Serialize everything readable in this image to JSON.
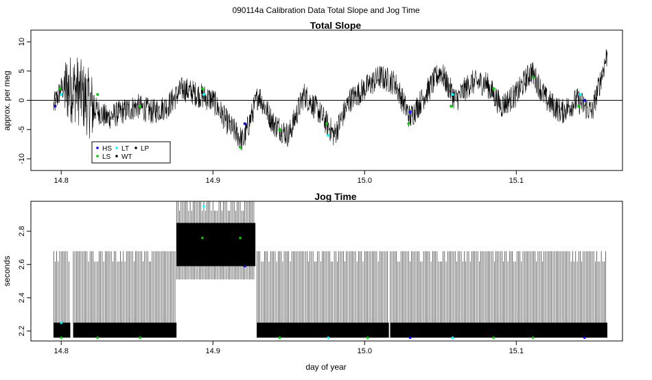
{
  "figure_title": "090114a   Calibration Data Total Slope and Jog Time",
  "xlabel": "day of year",
  "x_ticks": [
    "14.8",
    "14.9",
    "15.0",
    "15.1"
  ],
  "colors": {
    "trace": "#000000",
    "HS": "#0000ff",
    "LS": "#00cc00",
    "LT": "#00ffff",
    "WT": "#000000",
    "LP": "#000000"
  },
  "chart_data": [
    {
      "type": "line",
      "title": "Total Slope",
      "ylabel": "approx. per meg",
      "xlim": [
        14.78,
        15.17
      ],
      "ylim": [
        -12,
        12
      ],
      "y_ticks": [
        "-10",
        "-5",
        "0",
        "5",
        "10"
      ],
      "x_ticks": [
        14.8,
        14.9,
        15.0,
        15.1
      ],
      "hline": 0,
      "legend": {
        "placement": "bottom-left",
        "entries": [
          {
            "label": "HS",
            "color": "#0000ff"
          },
          {
            "label": "LS",
            "color": "#00cc00"
          },
          {
            "label": "LT",
            "color": "#00ffff"
          },
          {
            "label": "WT",
            "color": "#000000"
          },
          {
            "label": "LP",
            "color": "#000000"
          }
        ]
      },
      "series": [
        {
          "x": [
            14.795,
            14.8,
            14.81,
            14.82,
            14.83,
            14.84,
            14.85,
            14.86,
            14.87,
            14.88,
            14.89,
            14.9,
            14.91,
            14.92,
            14.93,
            14.94,
            14.95,
            14.96,
            14.97,
            14.98,
            14.99,
            15.0,
            15.01,
            15.02,
            15.03,
            15.04,
            15.05,
            15.06,
            15.07,
            15.08,
            15.09,
            15.1,
            15.11,
            15.12,
            15.13,
            15.14,
            15.15,
            15.16
          ],
          "values": [
            -1,
            2,
            2,
            -1,
            -3,
            -2,
            -1,
            -2,
            -1,
            2,
            1,
            0,
            -4,
            -7,
            1,
            -4,
            -6,
            1,
            -2,
            -6,
            0,
            2,
            4,
            3,
            -3,
            1,
            5,
            0,
            3,
            3,
            -1,
            1,
            5,
            0,
            -2,
            0,
            -2,
            8
          ]
        }
      ],
      "markers": [
        {
          "group": "HS",
          "x": 14.796,
          "y": -1
        },
        {
          "group": "LS",
          "x": 14.799,
          "y": 2
        },
        {
          "group": "LT",
          "x": 14.8,
          "y": 1
        },
        {
          "group": "LS",
          "x": 14.824,
          "y": 1
        },
        {
          "group": "LS",
          "x": 14.852,
          "y": -1
        },
        {
          "group": "LT",
          "x": 14.894,
          "y": 1
        },
        {
          "group": "LS",
          "x": 14.893,
          "y": 2
        },
        {
          "group": "HS",
          "x": 14.921,
          "y": -4
        },
        {
          "group": "LS",
          "x": 14.918,
          "y": -8
        },
        {
          "group": "LS",
          "x": 14.944,
          "y": -5
        },
        {
          "group": "LS",
          "x": 14.975,
          "y": -4
        },
        {
          "group": "LT",
          "x": 14.976,
          "y": -6
        },
        {
          "group": "HS",
          "x": 15.03,
          "y": -2
        },
        {
          "group": "LS",
          "x": 15.029,
          "y": -4
        },
        {
          "group": "LT",
          "x": 15.058,
          "y": 1
        },
        {
          "group": "LS",
          "x": 15.057,
          "y": -1
        },
        {
          "group": "LS",
          "x": 15.085,
          "y": 2
        },
        {
          "group": "LS",
          "x": 15.111,
          "y": 4
        },
        {
          "group": "HS",
          "x": 15.145,
          "y": 0
        },
        {
          "group": "LT",
          "x": 15.142,
          "y": 1
        },
        {
          "group": "LS",
          "x": 15.141,
          "y": -1
        }
      ]
    },
    {
      "type": "line",
      "title": "Jog Time",
      "ylabel": "seconds",
      "xlim": [
        14.78,
        15.17
      ],
      "ylim": [
        2.14,
        2.98
      ],
      "y_ticks": [
        "2.2",
        "2.4",
        "2.6",
        "2.8"
      ],
      "x_ticks": [
        14.8,
        14.9,
        15.0,
        15.1
      ],
      "segments": [
        {
          "x_start": 14.795,
          "x_end": 14.806,
          "low": 2.16,
          "high": 2.68
        },
        {
          "x_start": 14.808,
          "x_end": 14.876,
          "low": 2.16,
          "high": 2.68
        },
        {
          "x_start": 14.876,
          "x_end": 14.928,
          "low": 2.51,
          "high": 2.98
        },
        {
          "x_start": 14.929,
          "x_end": 15.016,
          "low": 2.16,
          "high": 2.68
        },
        {
          "x_start": 15.017,
          "x_end": 15.16,
          "low": 2.16,
          "high": 2.68
        }
      ],
      "bands": [
        {
          "x_start": 14.795,
          "x_end": 14.806,
          "low": 2.16,
          "high": 2.25
        },
        {
          "x_start": 14.808,
          "x_end": 14.876,
          "low": 2.16,
          "high": 2.25
        },
        {
          "x_start": 14.876,
          "x_end": 14.928,
          "low": 2.59,
          "high": 2.85
        },
        {
          "x_start": 14.929,
          "x_end": 15.016,
          "low": 2.16,
          "high": 2.25
        },
        {
          "x_start": 15.017,
          "x_end": 15.16,
          "low": 2.16,
          "high": 2.25
        }
      ],
      "markers": [
        {
          "group": "LS",
          "x": 14.8,
          "y": 2.16
        },
        {
          "group": "LT",
          "x": 14.8,
          "y": 2.25
        },
        {
          "group": "LS",
          "x": 14.824,
          "y": 2.16
        },
        {
          "group": "LS",
          "x": 14.852,
          "y": 2.16
        },
        {
          "group": "LS",
          "x": 14.893,
          "y": 2.76
        },
        {
          "group": "LT",
          "x": 14.894,
          "y": 2.95
        },
        {
          "group": "LS",
          "x": 14.918,
          "y": 2.76
        },
        {
          "group": "HS",
          "x": 14.921,
          "y": 2.59
        },
        {
          "group": "LS",
          "x": 14.944,
          "y": 2.16
        },
        {
          "group": "LT",
          "x": 14.976,
          "y": 2.16
        },
        {
          "group": "LS",
          "x": 15.002,
          "y": 2.16
        },
        {
          "group": "HS",
          "x": 15.03,
          "y": 2.16
        },
        {
          "group": "LT",
          "x": 15.058,
          "y": 2.16
        },
        {
          "group": "LS",
          "x": 15.085,
          "y": 2.16
        },
        {
          "group": "LS",
          "x": 15.111,
          "y": 2.16
        },
        {
          "group": "HS",
          "x": 15.145,
          "y": 2.16
        }
      ]
    }
  ]
}
